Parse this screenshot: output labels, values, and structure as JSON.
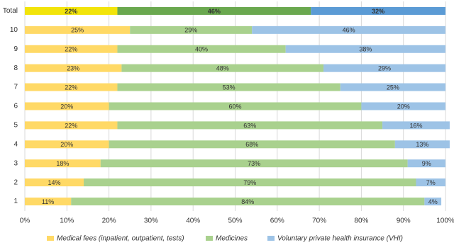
{
  "chart_data": {
    "type": "stacked-bar-horizontal",
    "categories": [
      "Total",
      "10",
      "9",
      "8",
      "7",
      "6",
      "5",
      "4",
      "3",
      "2",
      "1"
    ],
    "series": [
      {
        "name": "Medical fees (inpatient, outpatient, tests)",
        "color": "#ffd966",
        "colors": [
          "#f2e40a",
          "#ffd966",
          "#ffd966",
          "#ffd966",
          "#ffd966",
          "#ffd966",
          "#ffd966",
          "#ffd966",
          "#ffd966",
          "#ffd966",
          "#ffd966"
        ],
        "values": [
          22,
          25,
          22,
          23,
          22,
          20,
          22,
          20,
          18,
          14,
          11
        ],
        "value_labels": [
          "22%",
          "25%",
          "22%",
          "23%",
          "22%",
          "20%",
          "22%",
          "20%",
          "18%",
          "14%",
          "11%"
        ]
      },
      {
        "name": "Medicines",
        "color": "#a9d18e",
        "colors": [
          "#6aa84f",
          "#a9d18e",
          "#a9d18e",
          "#a9d18e",
          "#a9d18e",
          "#a9d18e",
          "#a9d18e",
          "#a9d18e",
          "#a9d18e",
          "#a9d18e",
          "#a9d18e"
        ],
        "values": [
          46,
          29,
          40,
          48,
          53,
          60,
          63,
          68,
          73,
          79,
          84
        ],
        "value_labels": [
          "46%",
          "29%",
          "40%",
          "48%",
          "53%",
          "60%",
          "63%",
          "68%",
          "73%",
          "79%",
          "84%"
        ]
      },
      {
        "name": "Voluntary private health insurance (VHI)",
        "color": "#9dc3e6",
        "colors": [
          "#5b9bd5",
          "#9dc3e6",
          "#9dc3e6",
          "#9dc3e6",
          "#9dc3e6",
          "#9dc3e6",
          "#9dc3e6",
          "#9dc3e6",
          "#9dc3e6",
          "#9dc3e6",
          "#9dc3e6"
        ],
        "values": [
          32,
          46,
          38,
          29,
          25,
          20,
          16,
          13,
          9,
          7,
          4
        ],
        "value_labels": [
          "32%",
          "46%",
          "38%",
          "29%",
          "25%",
          "20%",
          "16%",
          "13%",
          "9%",
          "7%",
          "4%"
        ]
      }
    ],
    "xlim": [
      0,
      100
    ],
    "xticks": [
      {
        "value": 0,
        "label": "0%"
      },
      {
        "value": 10,
        "label": "10%"
      },
      {
        "value": 20,
        "label": "20%"
      },
      {
        "value": 30,
        "label": "30%"
      },
      {
        "value": 40,
        "label": "40%"
      },
      {
        "value": 50,
        "label": "50%"
      },
      {
        "value": 60,
        "label": "60%"
      },
      {
        "value": 70,
        "label": "70%"
      },
      {
        "value": 80,
        "label": "80%"
      },
      {
        "value": 90,
        "label": "90%"
      },
      {
        "value": 100,
        "label": "100%"
      }
    ],
    "grid": true,
    "legend": "bottom"
  }
}
